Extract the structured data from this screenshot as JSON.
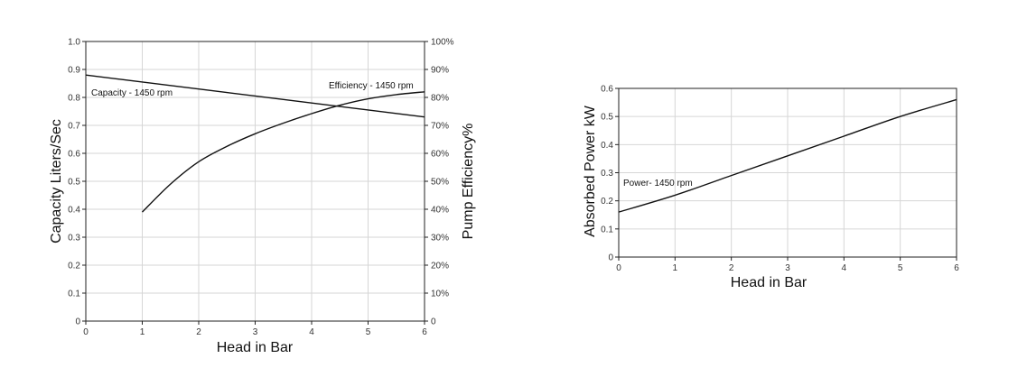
{
  "chart_data": [
    {
      "type": "line",
      "title": "",
      "xlabel": "Head in Bar",
      "ylabel": "Capacity Liters/Sec",
      "y2label": "Pump Efficiency%",
      "xlim": [
        0,
        6
      ],
      "ylim": [
        0,
        1.0
      ],
      "y2lim": [
        0,
        100
      ],
      "x_ticks": [
        "0",
        "1",
        "2",
        "3",
        "4",
        "5",
        "6"
      ],
      "y_ticks": [
        "0",
        "0.1",
        "0.2",
        "0.3",
        "0.4",
        "0.5",
        "0.6",
        "0.7",
        "0.8",
        "0.9",
        "1.0"
      ],
      "y2_ticks": [
        "0",
        "10%",
        "20%",
        "30%",
        "40%",
        "50%",
        "60%",
        "70%",
        "80%",
        "90%",
        "100%"
      ],
      "grid": true,
      "series": [
        {
          "name": "Capacity - 1450 rpm",
          "axis": "left",
          "x": [
            0,
            1,
            2,
            3,
            4,
            5,
            6
          ],
          "y": [
            0.88,
            0.855,
            0.83,
            0.805,
            0.78,
            0.755,
            0.73
          ]
        },
        {
          "name": "Efficiency - 1450 rpm",
          "axis": "right",
          "x": [
            1,
            1.5,
            2,
            2.5,
            3,
            3.5,
            4,
            4.5,
            5,
            5.5,
            6
          ],
          "y": [
            39,
            49,
            57,
            62.5,
            67,
            70.8,
            74.2,
            77.2,
            79.5,
            81,
            82
          ]
        }
      ]
    },
    {
      "type": "line",
      "title": "",
      "xlabel": "Head in Bar",
      "ylabel": "Absorbed Power kW",
      "xlim": [
        0,
        6
      ],
      "ylim": [
        0,
        0.6
      ],
      "x_ticks": [
        "0",
        "1",
        "2",
        "3",
        "4",
        "5",
        "6"
      ],
      "y_ticks": [
        "0",
        "0.1",
        "0.2",
        "0.3",
        "0.4",
        "0.5",
        "0.6"
      ],
      "grid": true,
      "series": [
        {
          "name": "Power- 1450 rpm",
          "x": [
            0,
            1,
            2,
            3,
            4,
            5,
            6
          ],
          "y": [
            0.16,
            0.22,
            0.29,
            0.36,
            0.43,
            0.5,
            0.56
          ]
        }
      ]
    }
  ]
}
